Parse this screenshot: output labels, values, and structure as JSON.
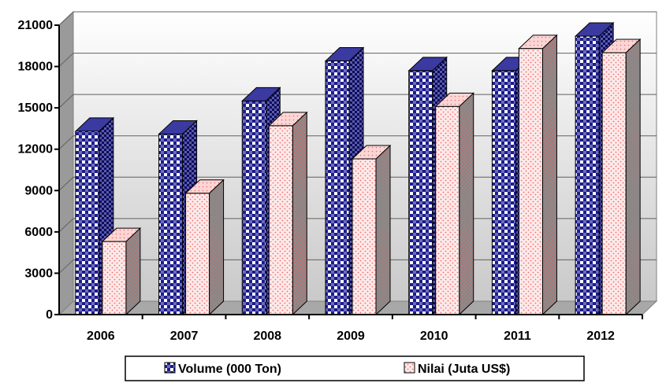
{
  "chart_data": {
    "type": "bar",
    "categories": [
      "2006",
      "2007",
      "2008",
      "2009",
      "2010",
      "2011",
      "2012"
    ],
    "series": [
      {
        "name": "Volume (000 Ton)",
        "values": [
          13300,
          13100,
          15500,
          18400,
          17700,
          17700,
          20200
        ],
        "color": "#1c1c8c"
      },
      {
        "name": "Nilai (Juta US$)",
        "values": [
          5300,
          8800,
          13700,
          11300,
          15100,
          19300,
          19000
        ],
        "color": "#f26d6d"
      }
    ],
    "ylim": [
      0,
      21000
    ],
    "yticks": [
      "0",
      "3000",
      "6000",
      "9000",
      "12000",
      "15000",
      "18000",
      "21000"
    ],
    "grid": true,
    "legend_position": "bottom",
    "style": "3d-clustered-column",
    "title": "",
    "xlabel": "",
    "ylabel": ""
  }
}
